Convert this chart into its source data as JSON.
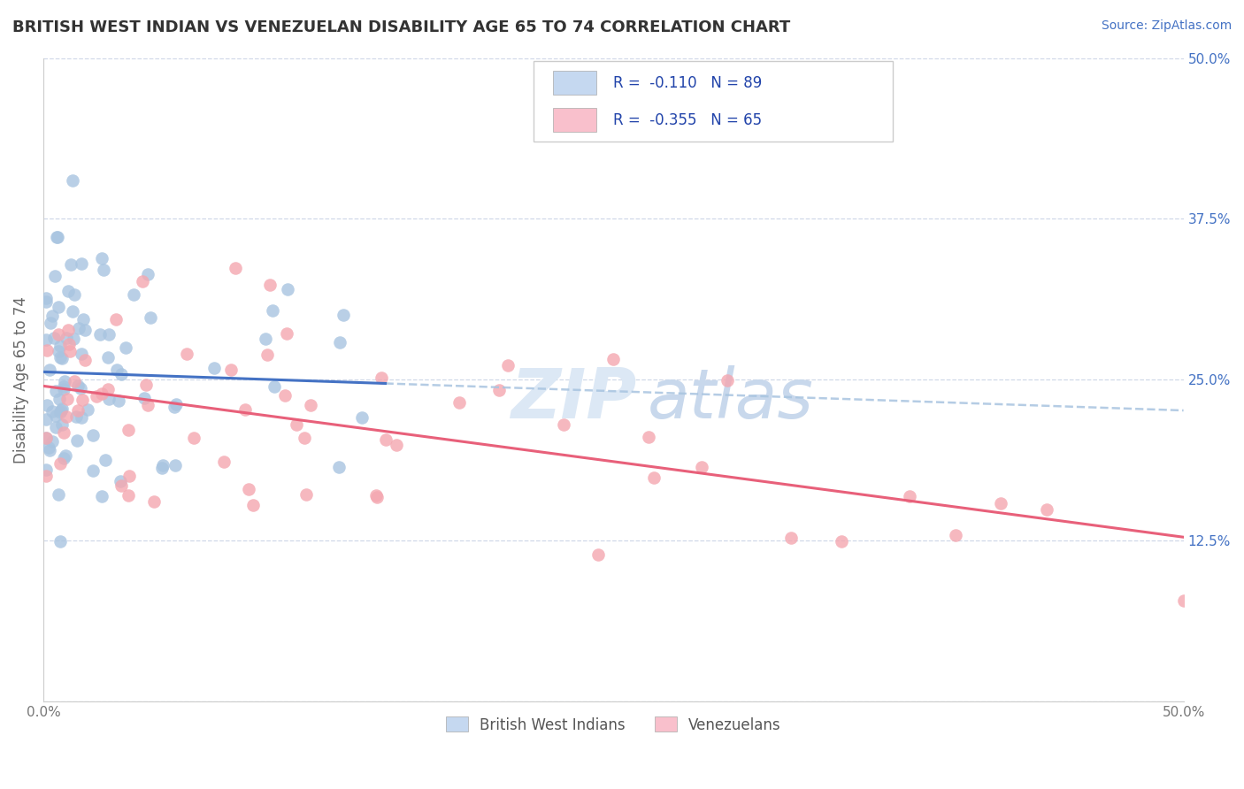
{
  "title": "BRITISH WEST INDIAN VS VENEZUELAN DISABILITY AGE 65 TO 74 CORRELATION CHART",
  "source": "Source: ZipAtlas.com",
  "ylabel": "Disability Age 65 to 74",
  "xlim": [
    0.0,
    0.5
  ],
  "ylim": [
    0.0,
    0.5
  ],
  "yticks": [
    0.0,
    0.125,
    0.25,
    0.375,
    0.5
  ],
  "ytick_labels_right": [
    "",
    "12.5%",
    "25.0%",
    "37.5%",
    "50.0%"
  ],
  "xticks": [
    0.0,
    0.125,
    0.25,
    0.375,
    0.5
  ],
  "xtick_labels": [
    "0.0%",
    "",
    "",
    "",
    "50.0%"
  ],
  "r_bwi": -0.11,
  "n_bwi": 89,
  "r_ven": -0.355,
  "n_ven": 65,
  "bwi_color": "#a8c4e0",
  "ven_color": "#f4a7b0",
  "bwi_line_color": "#4472c4",
  "ven_line_color": "#e8607a",
  "bwi_dashed_color": "#a8c4e0",
  "grid_color": "#d0d8e8",
  "legend_box_bwi": "#c5d8f0",
  "legend_box_ven": "#f9c0cc",
  "title_color": "#333333",
  "source_color": "#4472c4",
  "background_color": "#ffffff",
  "bwi_line_intercept": 0.256,
  "bwi_line_slope": -0.06,
  "ven_line_intercept": 0.245,
  "ven_line_slope": -0.235
}
